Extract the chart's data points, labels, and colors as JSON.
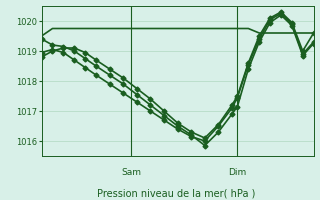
{
  "background_color": "#d8f0e8",
  "grid_color": "#b0d8c0",
  "line_color": "#1a5e20",
  "xlabel": "Pression niveau de la mer( hPa )",
  "ylim": [
    1015.5,
    1020.5
  ],
  "yticks": [
    1016,
    1017,
    1018,
    1019,
    1020
  ],
  "day_labels": [
    "Sam",
    "Dim"
  ],
  "day_positions": [
    0.33,
    0.72
  ],
  "series": [
    {
      "x": [
        0,
        0.04,
        0.08,
        0.12,
        0.16,
        0.2,
        0.24,
        0.28,
        0.33,
        0.38,
        0.42,
        0.47,
        0.52,
        0.56,
        0.6,
        0.65,
        0.72,
        0.76,
        0.8,
        0.84,
        0.88,
        0.92,
        0.96,
        1.0
      ],
      "y": [
        1019.5,
        1019.75,
        1019.75,
        1019.75,
        1019.75,
        1019.75,
        1019.75,
        1019.75,
        1019.75,
        1019.75,
        1019.75,
        1019.75,
        1019.75,
        1019.75,
        1019.75,
        1019.75,
        1019.75,
        1019.75,
        1019.6,
        1019.6,
        1019.6,
        1019.6,
        1019.6,
        1019.6
      ],
      "marker": null,
      "lw": 1.2
    },
    {
      "x": [
        0,
        0.04,
        0.08,
        0.12,
        0.16,
        0.2,
        0.25,
        0.3,
        0.35,
        0.4,
        0.45,
        0.5,
        0.55,
        0.6,
        0.65,
        0.7,
        0.72,
        0.76,
        0.8,
        0.84,
        0.88,
        0.92,
        0.96,
        1.0
      ],
      "y": [
        1018.8,
        1019.0,
        1019.1,
        1019.1,
        1018.95,
        1018.7,
        1018.4,
        1018.1,
        1017.75,
        1017.4,
        1017.0,
        1016.6,
        1016.3,
        1016.1,
        1016.55,
        1017.2,
        1017.5,
        1018.6,
        1019.5,
        1020.1,
        1020.3,
        1019.95,
        1019.0,
        1019.6
      ],
      "marker": "D",
      "ms": 2.5,
      "lw": 1.2
    },
    {
      "x": [
        0,
        0.04,
        0.08,
        0.12,
        0.16,
        0.2,
        0.25,
        0.3,
        0.35,
        0.4,
        0.45,
        0.5,
        0.55,
        0.6,
        0.65,
        0.7,
        0.72,
        0.76,
        0.8,
        0.84,
        0.88,
        0.92,
        0.96,
        1.0
      ],
      "y": [
        1019.4,
        1019.2,
        1019.15,
        1019.0,
        1018.75,
        1018.5,
        1018.2,
        1017.9,
        1017.55,
        1017.2,
        1016.85,
        1016.5,
        1016.2,
        1015.85,
        1016.3,
        1016.9,
        1017.15,
        1018.4,
        1019.3,
        1019.95,
        1020.2,
        1019.85,
        1018.85,
        1019.25
      ],
      "marker": "D",
      "ms": 2.5,
      "lw": 1.2
    },
    {
      "x": [
        0,
        0.04,
        0.08,
        0.12,
        0.16,
        0.2,
        0.25,
        0.3,
        0.35,
        0.4,
        0.45,
        0.5,
        0.55,
        0.6,
        0.65,
        0.7,
        0.72,
        0.76,
        0.8,
        0.84,
        0.88,
        0.92,
        0.96,
        1.0
      ],
      "y": [
        1018.95,
        1019.05,
        1018.95,
        1018.7,
        1018.45,
        1018.2,
        1017.9,
        1017.6,
        1017.3,
        1017.0,
        1016.7,
        1016.4,
        1016.15,
        1016.0,
        1016.5,
        1017.1,
        1017.45,
        1018.55,
        1019.4,
        1020.05,
        1020.25,
        1019.9,
        1018.9,
        1019.3
      ],
      "marker": "D",
      "ms": 2.5,
      "lw": 1.2
    }
  ]
}
